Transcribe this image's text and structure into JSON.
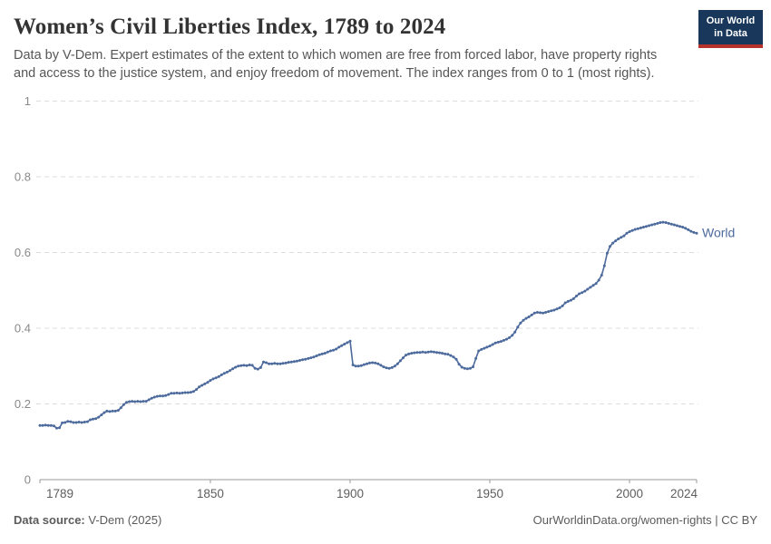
{
  "header": {
    "title": "Women’s Civil Liberties Index, 1789 to 2024",
    "subtitle_line1": "Data by V-Dem. Expert estimates of the extent to which women are free from forced labor, have property rights",
    "subtitle_line2": "and access to the justice system, and enjoy freedom of movement. The index ranges from 0 to 1 (most rights)."
  },
  "logo": {
    "line1": "Our World",
    "line2": "in Data",
    "bg_color": "#18375a",
    "bar_color": "#b5332a"
  },
  "footer": {
    "source_label": "Data source:",
    "source_value": " V-Dem (2025)",
    "url": "OurWorldinData.org/women-rights",
    "license": " | CC BY"
  },
  "chart_data": {
    "type": "line",
    "title": "Women's Civil Liberties Index, 1789 to 2024",
    "xlabel": "",
    "ylabel": "",
    "xlim": [
      1789,
      2024
    ],
    "ylim": [
      0,
      1
    ],
    "x_ticks": [
      1789,
      1850,
      1900,
      1950,
      2000,
      2024
    ],
    "y_ticks": [
      0,
      0.2,
      0.4,
      0.6,
      0.8,
      1
    ],
    "grid": true,
    "grid_color": "#dddddd",
    "axis_color": "#999999",
    "y_label_color": "#898989",
    "x_label_color": "#5e5e5e",
    "legend_position": "end-of-line-label",
    "series": [
      {
        "name": "World",
        "color": "#4c6a9c",
        "start_year": 1789,
        "end_year": 2024,
        "values": [
          0.143,
          0.143,
          0.144,
          0.143,
          0.143,
          0.142,
          0.136,
          0.137,
          0.15,
          0.151,
          0.154,
          0.153,
          0.151,
          0.151,
          0.152,
          0.151,
          0.152,
          0.153,
          0.158,
          0.16,
          0.161,
          0.165,
          0.171,
          0.177,
          0.181,
          0.18,
          0.181,
          0.181,
          0.183,
          0.19,
          0.198,
          0.204,
          0.206,
          0.207,
          0.206,
          0.207,
          0.206,
          0.207,
          0.207,
          0.211,
          0.215,
          0.218,
          0.22,
          0.221,
          0.221,
          0.222,
          0.225,
          0.228,
          0.228,
          0.229,
          0.228,
          0.229,
          0.23,
          0.23,
          0.231,
          0.233,
          0.238,
          0.245,
          0.249,
          0.253,
          0.257,
          0.262,
          0.266,
          0.269,
          0.272,
          0.277,
          0.281,
          0.284,
          0.288,
          0.293,
          0.297,
          0.3,
          0.301,
          0.302,
          0.301,
          0.303,
          0.302,
          0.294,
          0.292,
          0.296,
          0.311,
          0.309,
          0.306,
          0.306,
          0.307,
          0.306,
          0.306,
          0.307,
          0.308,
          0.31,
          0.311,
          0.312,
          0.313,
          0.315,
          0.317,
          0.318,
          0.32,
          0.322,
          0.324,
          0.327,
          0.33,
          0.332,
          0.334,
          0.337,
          0.34,
          0.342,
          0.345,
          0.35,
          0.354,
          0.358,
          0.362,
          0.366,
          0.303,
          0.3,
          0.3,
          0.301,
          0.304,
          0.306,
          0.308,
          0.309,
          0.308,
          0.306,
          0.302,
          0.298,
          0.295,
          0.294,
          0.296,
          0.3,
          0.306,
          0.314,
          0.322,
          0.329,
          0.332,
          0.334,
          0.335,
          0.336,
          0.336,
          0.337,
          0.336,
          0.337,
          0.338,
          0.337,
          0.336,
          0.335,
          0.334,
          0.332,
          0.331,
          0.328,
          0.324,
          0.318,
          0.305,
          0.297,
          0.294,
          0.293,
          0.294,
          0.298,
          0.32,
          0.34,
          0.344,
          0.347,
          0.35,
          0.353,
          0.357,
          0.361,
          0.363,
          0.365,
          0.368,
          0.371,
          0.375,
          0.381,
          0.39,
          0.403,
          0.414,
          0.421,
          0.426,
          0.43,
          0.435,
          0.44,
          0.442,
          0.441,
          0.44,
          0.442,
          0.444,
          0.446,
          0.448,
          0.451,
          0.454,
          0.459,
          0.467,
          0.471,
          0.474,
          0.478,
          0.485,
          0.491,
          0.494,
          0.498,
          0.503,
          0.508,
          0.513,
          0.518,
          0.527,
          0.54,
          0.565,
          0.598,
          0.616,
          0.625,
          0.631,
          0.636,
          0.64,
          0.644,
          0.651,
          0.655,
          0.658,
          0.661,
          0.663,
          0.665,
          0.667,
          0.669,
          0.671,
          0.673,
          0.675,
          0.677,
          0.679,
          0.68,
          0.679,
          0.677,
          0.675,
          0.673,
          0.671,
          0.669,
          0.667,
          0.664,
          0.66,
          0.656,
          0.653,
          0.651
        ]
      }
    ]
  }
}
